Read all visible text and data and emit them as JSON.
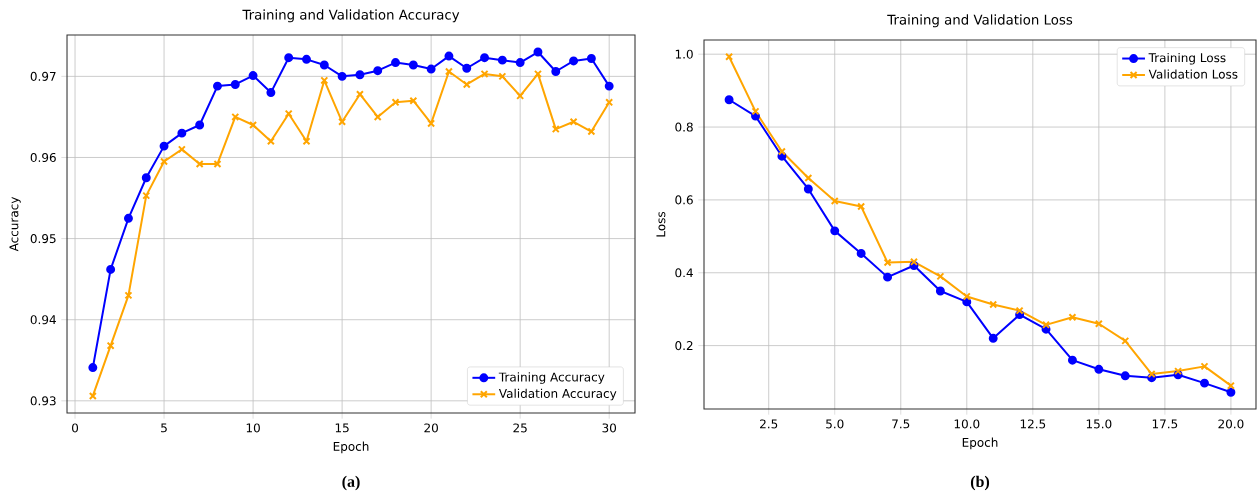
{
  "chart_data": [
    {
      "type": "line",
      "title": "Training and Validation Accuracy",
      "xlabel": "Epoch",
      "ylabel": "Accuracy",
      "annotations": [
        "(a)"
      ],
      "x": [
        1,
        2,
        3,
        4,
        5,
        6,
        7,
        8,
        9,
        10,
        11,
        12,
        13,
        14,
        15,
        16,
        17,
        18,
        19,
        20,
        21,
        22,
        23,
        24,
        25,
        26,
        27,
        28,
        29,
        30
      ],
      "series": [
        {
          "name": "Training Accuracy",
          "color": "#0000ff",
          "marker": "circle",
          "values": [
            0.9341,
            0.9462,
            0.9525,
            0.9575,
            0.9614,
            0.963,
            0.964,
            0.9688,
            0.969,
            0.9701,
            0.968,
            0.9723,
            0.9721,
            0.9714,
            0.97,
            0.9702,
            0.9707,
            0.9717,
            0.9714,
            0.9709,
            0.9725,
            0.971,
            0.9723,
            0.972,
            0.9717,
            0.973,
            0.9706,
            0.9719,
            0.9722,
            0.9688
          ]
        },
        {
          "name": "Validation Accuracy",
          "color": "#ffa500",
          "marker": "cross",
          "values": [
            0.9306,
            0.9368,
            0.943,
            0.9553,
            0.9595,
            0.961,
            0.9592,
            0.9592,
            0.965,
            0.964,
            0.962,
            0.9654,
            0.962,
            0.9695,
            0.9644,
            0.9678,
            0.965,
            0.9668,
            0.967,
            0.9642,
            0.9706,
            0.969,
            0.9703,
            0.97,
            0.9676,
            0.9703,
            0.9635,
            0.9644,
            0.9632,
            0.9668
          ]
        }
      ],
      "xlim": [
        -0.45,
        31.45
      ],
      "ylim": [
        0.9285,
        0.9751
      ],
      "xticks": [
        0,
        5,
        10,
        15,
        20,
        25,
        30
      ],
      "yticks": [
        0.93,
        0.94,
        0.95,
        0.96,
        0.97
      ],
      "grid": true,
      "legend": "bottom right"
    },
    {
      "type": "line",
      "title": "Training and Validation Loss",
      "xlabel": "Epoch",
      "ylabel": "Loss",
      "annotations": [
        "(b)"
      ],
      "x": [
        1,
        2,
        3,
        4,
        5,
        6,
        7,
        8,
        9,
        10,
        11,
        12,
        13,
        14,
        15,
        16,
        17,
        18,
        19,
        20
      ],
      "series": [
        {
          "name": "Training Loss",
          "color": "#0000ff",
          "marker": "circle",
          "values": [
            0.875,
            0.83,
            0.72,
            0.63,
            0.515,
            0.453,
            0.388,
            0.42,
            0.35,
            0.32,
            0.22,
            0.285,
            0.245,
            0.16,
            0.135,
            0.117,
            0.112,
            0.12,
            0.097,
            0.072
          ]
        },
        {
          "name": "Validation Loss",
          "color": "#ffa500",
          "marker": "cross",
          "values": [
            0.993,
            0.843,
            0.733,
            0.66,
            0.597,
            0.582,
            0.428,
            0.43,
            0.39,
            0.335,
            0.313,
            0.296,
            0.257,
            0.278,
            0.26,
            0.213,
            0.122,
            0.13,
            0.143,
            0.09
          ]
        }
      ],
      "xlim": [
        0.05,
        20.95
      ],
      "ylim": [
        0.026,
        1.039
      ],
      "xticks": [
        {
          "value": 2.5,
          "label": "2.5"
        },
        {
          "value": 5,
          "label": "5.0"
        },
        {
          "value": 7.5,
          "label": "7.5"
        },
        {
          "value": 10,
          "label": "10.0"
        },
        {
          "value": 12.5,
          "label": "12.5"
        },
        {
          "value": 15,
          "label": "15.0"
        },
        {
          "value": 17.5,
          "label": "17.5"
        },
        {
          "value": 20,
          "label": "20.0"
        }
      ],
      "yticks": [
        {
          "value": 0.2,
          "label": "0.2"
        },
        {
          "value": 0.4,
          "label": "0.4"
        },
        {
          "value": 0.6,
          "label": "0.6"
        },
        {
          "value": 0.8,
          "label": "0.8"
        },
        {
          "value": 1.0,
          "label": "1.0"
        }
      ],
      "grid": true,
      "legend": "top right"
    }
  ]
}
